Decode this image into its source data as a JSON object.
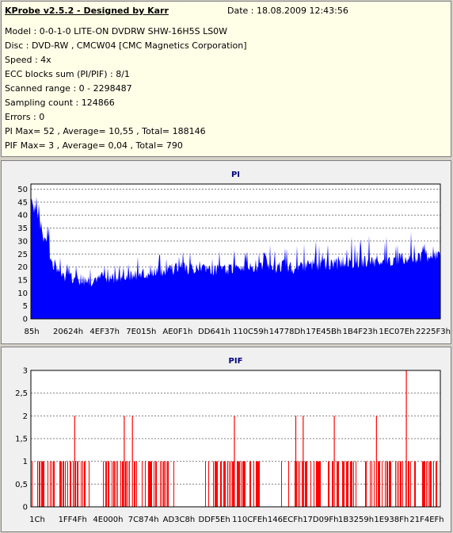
{
  "header": {
    "title": "KProbe v2.5.2 - Designed by Karr",
    "date": "Date : 18.08.2009 12:43:56"
  },
  "info": [
    "Model : 0-0-1-0 LITE-ON DVDRW SHW-16H5S  LS0W",
    "Disc : DVD-RW , CMCW04 [CMC Magnetics Corporation]",
    "Speed : 4x",
    "ECC blocks sum (PI/PIF) : 8/1",
    "Scanned range : 0 - 2298487",
    "Sampling count : 124866",
    "Errors : 0",
    "PI Max= 52 , Average= 10,55 , Total= 188146",
    "PIF Max= 3 , Average= 0,04 , Total= 790"
  ],
  "colors": {
    "pi_fill": "#0000ff",
    "pif_bar": "#ff0000",
    "title_text": "#000080",
    "plot_bg": "#ffffff",
    "grid": "#808080"
  },
  "chart_data": [
    {
      "type": "area",
      "title": "PI",
      "ylim": [
        0,
        52
      ],
      "yticks": [
        0,
        5,
        10,
        15,
        20,
        25,
        30,
        35,
        40,
        45,
        50
      ],
      "xticks": [
        "85h",
        "20624h",
        "4EF37h",
        "7E015h",
        "AE0F1h",
        "DD641h",
        "110C59h",
        "14778Dh",
        "17E45Bh",
        "1B4F23h",
        "1EC07Eh",
        "2225F3h"
      ],
      "grid": true,
      "series": [
        {
          "x_fraction": [
            0,
            0.02,
            0.05,
            0.08,
            0.12,
            0.16,
            0.2,
            0.25,
            0.3,
            0.35,
            0.4,
            0.45,
            0.5,
            0.55,
            0.6,
            0.65,
            0.7,
            0.75,
            0.8,
            0.85,
            0.9,
            0.95,
            1
          ],
          "baseline": [
            45,
            38,
            22,
            17,
            15,
            15,
            16,
            17,
            18,
            19,
            19,
            19,
            19,
            20,
            20,
            20,
            21,
            21,
            22,
            22,
            23,
            24,
            25
          ],
          "peak": [
            52,
            46,
            34,
            22,
            20,
            21,
            22,
            24,
            26,
            27,
            26,
            27,
            28,
            28,
            29,
            30,
            31,
            31,
            33,
            32,
            33,
            35,
            34
          ]
        }
      ]
    },
    {
      "type": "bar",
      "title": "PIF",
      "ylim": [
        0,
        3
      ],
      "yticks": [
        "0",
        "0,5",
        "1",
        "1,5",
        "2",
        "2,5",
        "3"
      ],
      "xticks": [
        "1Ch",
        "1FF4Fh",
        "4E000h",
        "7C874h",
        "AD3C8h",
        "DDF5Eh",
        "110CFEh",
        "146ECFh",
        "17D09Fh",
        "1B3259h",
        "1E938Fh",
        "21F4EFh"
      ],
      "grid": true,
      "spikes": [
        {
          "x_fraction": 0.107,
          "value": 2
        },
        {
          "x_fraction": 0.228,
          "value": 2
        },
        {
          "x_fraction": 0.248,
          "value": 2
        },
        {
          "x_fraction": 0.497,
          "value": 2
        },
        {
          "x_fraction": 0.647,
          "value": 2
        },
        {
          "x_fraction": 0.665,
          "value": 2
        },
        {
          "x_fraction": 0.741,
          "value": 2
        },
        {
          "x_fraction": 0.844,
          "value": 2
        },
        {
          "x_fraction": 0.917,
          "value": 3
        }
      ],
      "gaps": [
        [
          0.145,
          0.175
        ],
        [
          0.35,
          0.42
        ],
        [
          0.56,
          0.6
        ],
        [
          0.94,
          0.955
        ]
      ]
    }
  ]
}
